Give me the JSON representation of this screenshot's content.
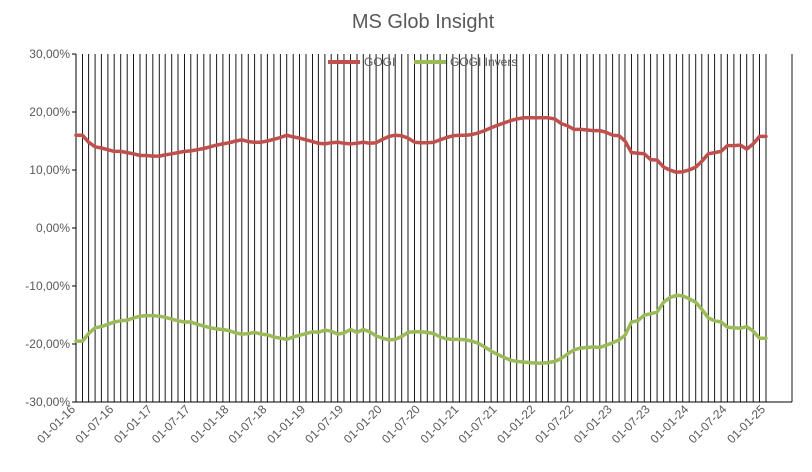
{
  "chart_data": {
    "type": "line",
    "title": "MS Glob Insight",
    "xlabel": "",
    "ylabel": "",
    "legend_position": "top",
    "grid": "vertical",
    "y_ticks": [
      "-30,00%",
      "-20,00%",
      "-10,00%",
      "0,00%",
      "10,00%",
      "20,00%",
      "30,00%"
    ],
    "ylim": [
      -30,
      30
    ],
    "x_ticks": [
      "01-01-16",
      "01-07-16",
      "01-01-17",
      "01-07-17",
      "01-01-18",
      "01-07-18",
      "01-01-19",
      "01-07-19",
      "01-01-20",
      "01-07-20",
      "01-01-21",
      "01-07-21",
      "01-01-22",
      "01-07-22",
      "01-01-23",
      "01-07-23",
      "01-01-24",
      "01-07-24",
      "01-01-25"
    ],
    "series": [
      {
        "name": "GOGI",
        "color": "#C0504D",
        "points": [
          [
            "01-01-16",
            16.0
          ],
          [
            "01-02-16",
            16.0
          ],
          [
            "01-03-16",
            14.8
          ],
          [
            "01-04-16",
            14.0
          ],
          [
            "01-05-16",
            13.8
          ],
          [
            "01-06-16",
            13.5
          ],
          [
            "01-07-16",
            13.2
          ],
          [
            "01-08-16",
            13.2
          ],
          [
            "01-09-16",
            13.0
          ],
          [
            "01-10-16",
            12.8
          ],
          [
            "01-11-16",
            12.5
          ],
          [
            "01-12-16",
            12.5
          ],
          [
            "01-01-17",
            12.4
          ],
          [
            "01-02-17",
            12.4
          ],
          [
            "01-03-17",
            12.6
          ],
          [
            "01-04-17",
            12.8
          ],
          [
            "01-05-17",
            13.0
          ],
          [
            "01-06-17",
            13.2
          ],
          [
            "01-07-17",
            13.3
          ],
          [
            "01-08-17",
            13.5
          ],
          [
            "01-09-17",
            13.7
          ],
          [
            "01-10-17",
            14.0
          ],
          [
            "01-11-17",
            14.3
          ],
          [
            "01-12-17",
            14.5
          ],
          [
            "01-01-18",
            14.7
          ],
          [
            "01-02-18",
            15.0
          ],
          [
            "01-03-18",
            15.2
          ],
          [
            "01-04-18",
            14.9
          ],
          [
            "01-05-18",
            14.8
          ],
          [
            "01-06-18",
            14.8
          ],
          [
            "01-07-18",
            15.0
          ],
          [
            "01-08-18",
            15.3
          ],
          [
            "01-09-18",
            15.6
          ],
          [
            "01-10-18",
            16.0
          ],
          [
            "01-11-18",
            15.7
          ],
          [
            "01-12-18",
            15.5
          ],
          [
            "01-01-19",
            15.2
          ],
          [
            "01-02-19",
            14.9
          ],
          [
            "01-03-19",
            14.6
          ],
          [
            "01-04-19",
            14.5
          ],
          [
            "01-05-19",
            14.7
          ],
          [
            "01-06-19",
            14.8
          ],
          [
            "01-07-19",
            14.6
          ],
          [
            "01-08-19",
            14.5
          ],
          [
            "01-09-19",
            14.6
          ],
          [
            "01-10-19",
            14.8
          ],
          [
            "01-11-19",
            14.6
          ],
          [
            "01-12-19",
            14.7
          ],
          [
            "01-01-20",
            15.3
          ],
          [
            "01-02-20",
            15.8
          ],
          [
            "01-03-20",
            16.0
          ],
          [
            "01-04-20",
            15.9
          ],
          [
            "01-05-20",
            15.5
          ],
          [
            "01-06-20",
            14.8
          ],
          [
            "01-07-20",
            14.7
          ],
          [
            "01-08-20",
            14.7
          ],
          [
            "01-09-20",
            14.8
          ],
          [
            "01-10-20",
            15.2
          ],
          [
            "01-11-20",
            15.6
          ],
          [
            "01-12-20",
            15.9
          ],
          [
            "01-01-21",
            16.0
          ],
          [
            "01-02-21",
            16.0
          ],
          [
            "01-03-21",
            16.1
          ],
          [
            "01-04-21",
            16.4
          ],
          [
            "01-05-21",
            16.8
          ],
          [
            "01-06-21",
            17.3
          ],
          [
            "01-07-21",
            17.7
          ],
          [
            "01-08-21",
            18.1
          ],
          [
            "01-09-21",
            18.5
          ],
          [
            "01-10-21",
            18.8
          ],
          [
            "01-11-21",
            19.0
          ],
          [
            "01-12-21",
            19.0
          ],
          [
            "01-01-22",
            19.0
          ],
          [
            "01-02-22",
            19.0
          ],
          [
            "01-03-22",
            19.0
          ],
          [
            "01-04-22",
            18.8
          ],
          [
            "01-05-22",
            18.0
          ],
          [
            "01-06-22",
            17.6
          ],
          [
            "01-07-22",
            17.0
          ],
          [
            "01-08-22",
            17.0
          ],
          [
            "01-09-22",
            16.9
          ],
          [
            "01-10-22",
            16.8
          ],
          [
            "01-11-22",
            16.8
          ],
          [
            "01-12-22",
            16.5
          ],
          [
            "01-01-23",
            16.0
          ],
          [
            "01-02-23",
            15.9
          ],
          [
            "01-03-23",
            15.0
          ],
          [
            "01-04-23",
            13.0
          ],
          [
            "01-05-23",
            12.9
          ],
          [
            "01-06-23",
            12.8
          ],
          [
            "01-07-23",
            11.8
          ],
          [
            "01-08-23",
            11.7
          ],
          [
            "01-09-23",
            10.5
          ],
          [
            "01-10-23",
            10.0
          ],
          [
            "01-11-23",
            9.6
          ],
          [
            "01-12-23",
            9.7
          ],
          [
            "01-01-24",
            10.0
          ],
          [
            "01-02-24",
            10.5
          ],
          [
            "01-03-24",
            11.5
          ],
          [
            "01-04-24",
            12.8
          ],
          [
            "01-05-24",
            13.0
          ],
          [
            "01-06-24",
            13.2
          ],
          [
            "01-07-24",
            14.2
          ],
          [
            "01-08-24",
            14.2
          ],
          [
            "01-09-24",
            14.3
          ],
          [
            "01-10-24",
            13.6
          ],
          [
            "01-11-24",
            14.5
          ],
          [
            "01-12-24",
            15.8
          ],
          [
            "01-01-25",
            15.8
          ]
        ]
      },
      {
        "name": "GOGI Invers",
        "color": "#9BBB59",
        "points": [
          [
            "01-01-16",
            -19.5
          ],
          [
            "01-02-16",
            -19.5
          ],
          [
            "01-03-16",
            -18.2
          ],
          [
            "01-04-16",
            -17.2
          ],
          [
            "01-05-16",
            -17.0
          ],
          [
            "01-06-16",
            -16.6
          ],
          [
            "01-07-16",
            -16.2
          ],
          [
            "01-08-16",
            -16.0
          ],
          [
            "01-09-16",
            -15.9
          ],
          [
            "01-10-16",
            -15.5
          ],
          [
            "01-11-16",
            -15.2
          ],
          [
            "01-12-16",
            -15.1
          ],
          [
            "01-01-17",
            -15.1
          ],
          [
            "01-02-17",
            -15.2
          ],
          [
            "01-03-17",
            -15.4
          ],
          [
            "01-04-17",
            -15.7
          ],
          [
            "01-05-17",
            -16.0
          ],
          [
            "01-06-17",
            -16.2
          ],
          [
            "01-07-17",
            -16.2
          ],
          [
            "01-08-17",
            -16.6
          ],
          [
            "01-09-17",
            -16.9
          ],
          [
            "01-10-17",
            -17.2
          ],
          [
            "01-11-17",
            -17.4
          ],
          [
            "01-12-17",
            -17.5
          ],
          [
            "01-01-18",
            -17.7
          ],
          [
            "01-02-18",
            -18.1
          ],
          [
            "01-03-18",
            -18.3
          ],
          [
            "01-04-18",
            -18.2
          ],
          [
            "01-05-18",
            -18.0
          ],
          [
            "01-06-18",
            -18.3
          ],
          [
            "01-07-18",
            -18.4
          ],
          [
            "01-08-18",
            -18.8
          ],
          [
            "01-09-18",
            -19.0
          ],
          [
            "01-10-18",
            -19.2
          ],
          [
            "01-11-18",
            -18.8
          ],
          [
            "01-12-18",
            -18.5
          ],
          [
            "01-01-19",
            -18.2
          ],
          [
            "01-02-19",
            -17.9
          ],
          [
            "01-03-19",
            -18.0
          ],
          [
            "01-04-19",
            -17.6
          ],
          [
            "01-05-19",
            -17.8
          ],
          [
            "01-06-19",
            -18.3
          ],
          [
            "01-07-19",
            -18.1
          ],
          [
            "01-08-19",
            -17.5
          ],
          [
            "01-09-19",
            -18.0
          ],
          [
            "01-10-19",
            -17.5
          ],
          [
            "01-11-19",
            -17.9
          ],
          [
            "01-12-19",
            -18.6
          ],
          [
            "01-01-20",
            -19.0
          ],
          [
            "01-02-20",
            -19.3
          ],
          [
            "01-03-20",
            -19.2
          ],
          [
            "01-04-20",
            -18.7
          ],
          [
            "01-05-20",
            -18.0
          ],
          [
            "01-06-20",
            -17.9
          ],
          [
            "01-07-20",
            -17.9
          ],
          [
            "01-08-20",
            -18.0
          ],
          [
            "01-09-20",
            -18.2
          ],
          [
            "01-10-20",
            -18.8
          ],
          [
            "01-11-20",
            -19.1
          ],
          [
            "01-12-20",
            -19.2
          ],
          [
            "01-01-21",
            -19.2
          ],
          [
            "01-02-21",
            -19.3
          ],
          [
            "01-03-21",
            -19.5
          ],
          [
            "01-04-21",
            -19.9
          ],
          [
            "01-05-21",
            -20.5
          ],
          [
            "01-06-21",
            -21.2
          ],
          [
            "01-07-21",
            -21.8
          ],
          [
            "01-08-21",
            -22.3
          ],
          [
            "01-09-21",
            -22.8
          ],
          [
            "01-10-21",
            -23.0
          ],
          [
            "01-11-21",
            -23.1
          ],
          [
            "01-12-21",
            -23.2
          ],
          [
            "01-01-22",
            -23.3
          ],
          [
            "01-02-22",
            -23.3
          ],
          [
            "01-03-22",
            -23.2
          ],
          [
            "01-04-22",
            -23.0
          ],
          [
            "01-05-22",
            -22.5
          ],
          [
            "01-06-22",
            -21.7
          ],
          [
            "01-07-22",
            -21.0
          ],
          [
            "01-08-22",
            -20.7
          ],
          [
            "01-09-22",
            -20.6
          ],
          [
            "01-10-22",
            -20.5
          ],
          [
            "01-11-22",
            -20.6
          ],
          [
            "01-12-22",
            -20.2
          ],
          [
            "01-01-23",
            -19.8
          ],
          [
            "01-02-23",
            -19.3
          ],
          [
            "01-03-23",
            -18.5
          ],
          [
            "01-04-23",
            -16.2
          ],
          [
            "01-05-23",
            -16.0
          ],
          [
            "01-06-23",
            -15.0
          ],
          [
            "01-07-23",
            -14.8
          ],
          [
            "01-08-23",
            -14.5
          ],
          [
            "01-09-23",
            -12.8
          ],
          [
            "01-10-23",
            -12.0
          ],
          [
            "01-11-23",
            -11.6
          ],
          [
            "01-12-23",
            -11.7
          ],
          [
            "01-01-24",
            -12.2
          ],
          [
            "01-02-24",
            -12.8
          ],
          [
            "01-03-24",
            -14.0
          ],
          [
            "01-04-24",
            -15.5
          ],
          [
            "01-05-24",
            -16.0
          ],
          [
            "01-06-24",
            -16.2
          ],
          [
            "01-07-24",
            -17.1
          ],
          [
            "01-08-24",
            -17.2
          ],
          [
            "01-09-24",
            -17.3
          ],
          [
            "01-10-24",
            -17.0
          ],
          [
            "01-11-24",
            -17.8
          ],
          [
            "01-12-24",
            -19.0
          ],
          [
            "01-01-25",
            -19.0
          ]
        ]
      }
    ]
  }
}
